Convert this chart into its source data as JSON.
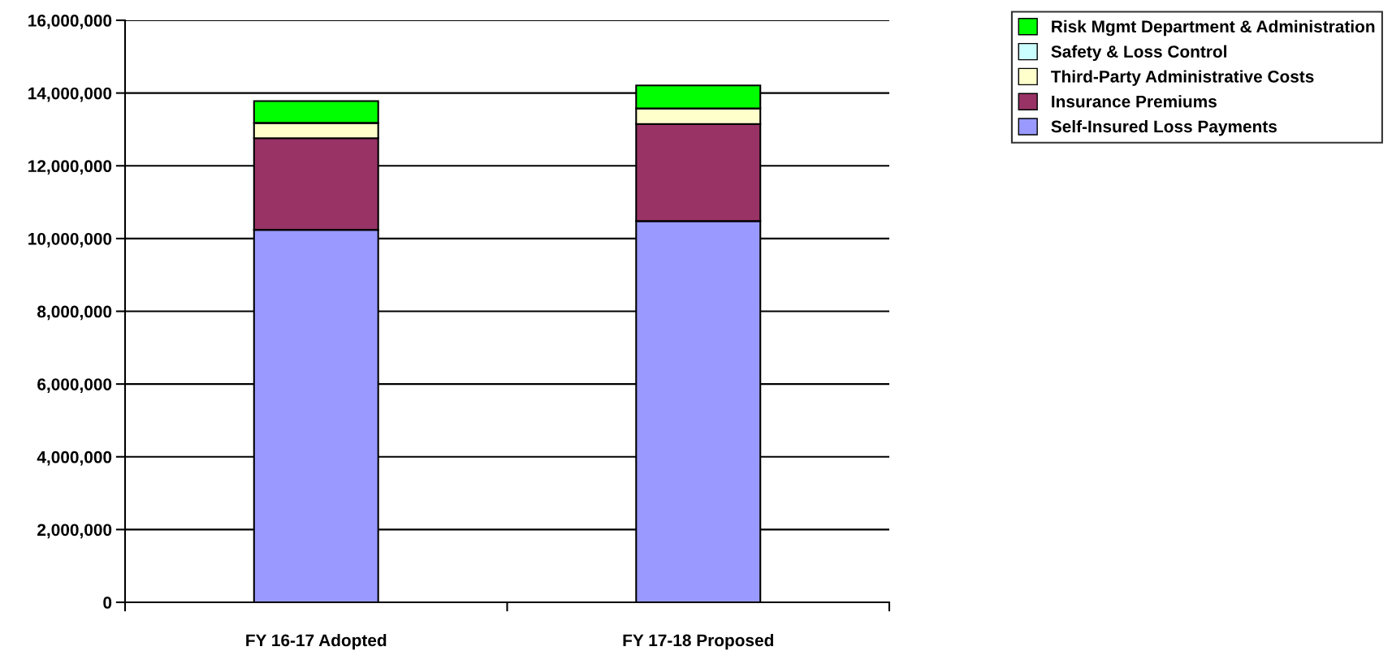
{
  "chart_data": {
    "type": "bar",
    "stacked": true,
    "categories": [
      "FY 16-17 Adopted",
      "FY 17-18 Proposed"
    ],
    "series": [
      {
        "name": "Self-Insured Loss Payments",
        "color": "#9999ff",
        "values": [
          10240000,
          10480000
        ]
      },
      {
        "name": "Insurance Premiums",
        "color": "#993366",
        "values": [
          2520000,
          2670000
        ]
      },
      {
        "name": "Third-Party Administrative Costs",
        "color": "#ffffcc",
        "values": [
          420000,
          430000
        ]
      },
      {
        "name": "Safety & Loss Control",
        "color": "#ccffff",
        "values": [
          0,
          0
        ]
      },
      {
        "name": "Risk Mgmt Department & Administration",
        "color": "#00ff00",
        "values": [
          600000,
          630000
        ]
      }
    ],
    "ylim": [
      0,
      16000000
    ],
    "yticks": [
      {
        "value": 0,
        "label": "0"
      },
      {
        "value": 2000000,
        "label": "2,000,000"
      },
      {
        "value": 4000000,
        "label": "4,000,000"
      },
      {
        "value": 6000000,
        "label": "6,000,000"
      },
      {
        "value": 8000000,
        "label": "8,000,000"
      },
      {
        "value": 10000000,
        "label": "10,000,000"
      },
      {
        "value": 12000000,
        "label": "12,000,000"
      },
      {
        "value": 14000000,
        "label": "14,000,000"
      },
      {
        "value": 16000000,
        "label": "16,000,000"
      }
    ],
    "grid": "y",
    "legend": "top right"
  }
}
